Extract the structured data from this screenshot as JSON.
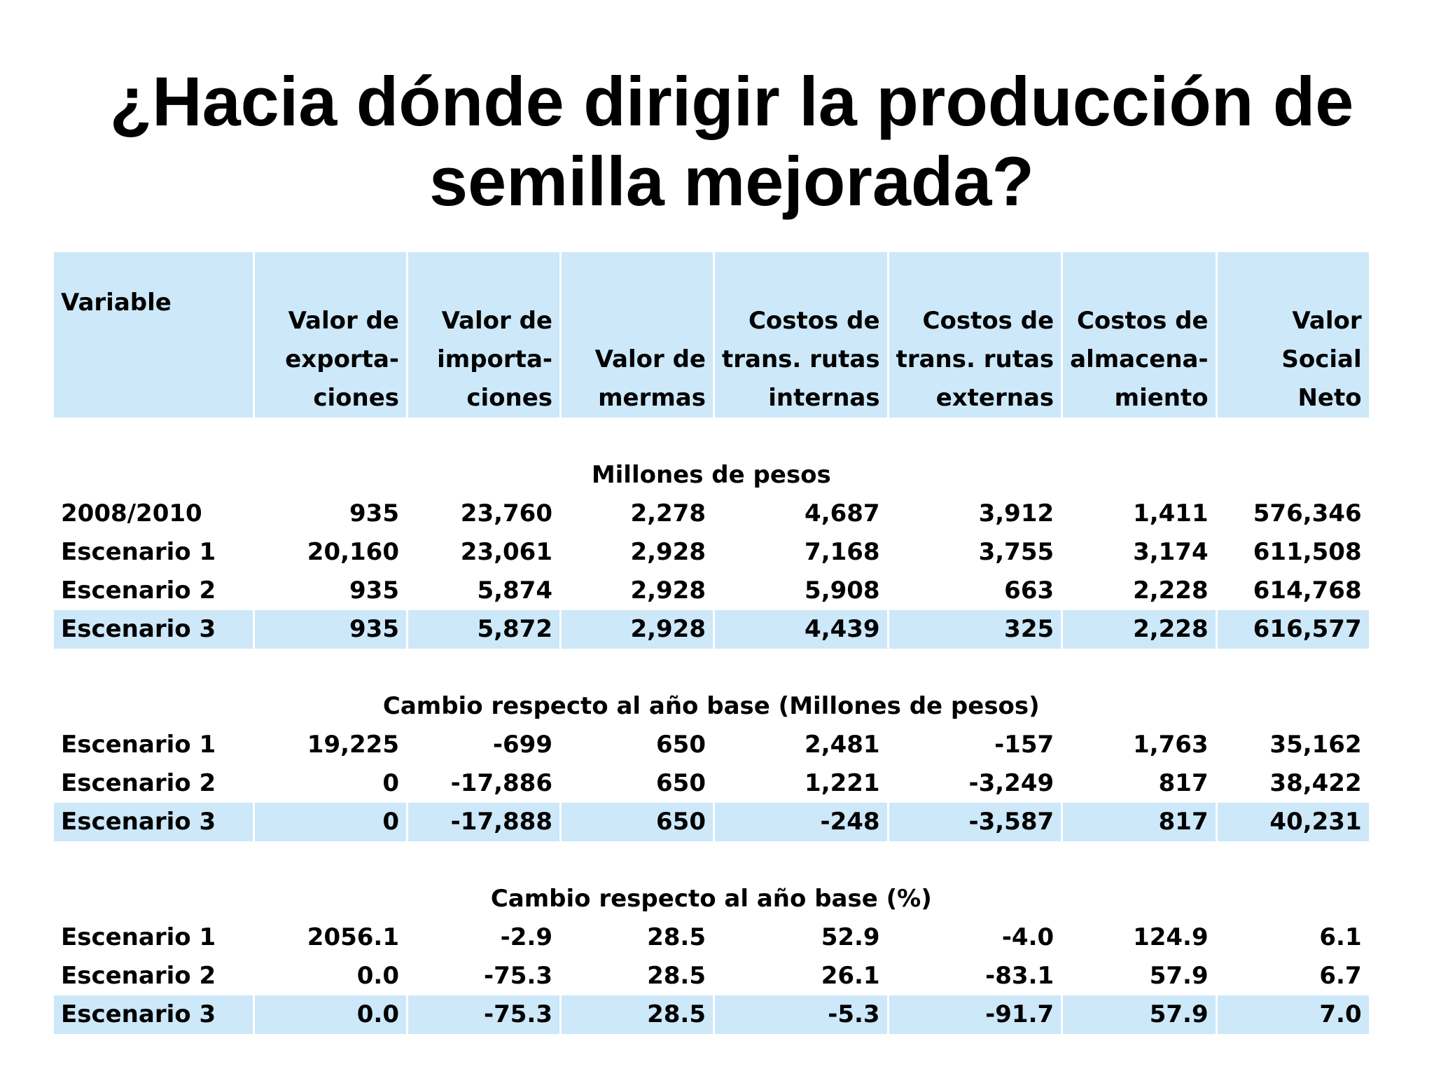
{
  "title": "¿Hacia dónde dirigir la producción de semilla mejorada?",
  "table": {
    "headers": [
      {
        "lines": [
          "Variable"
        ]
      },
      {
        "lines": [
          "Valor de",
          "exporta-",
          "ciones"
        ]
      },
      {
        "lines": [
          "Valor de",
          "importa-",
          "ciones"
        ]
      },
      {
        "lines": [
          "Valor de",
          "mermas"
        ]
      },
      {
        "lines": [
          "Costos de",
          "trans. rutas",
          "internas"
        ]
      },
      {
        "lines": [
          "Costos de",
          "trans. rutas",
          "externas"
        ]
      },
      {
        "lines": [
          "Costos de",
          "almacena-",
          "miento"
        ]
      },
      {
        "lines": [
          "Valor",
          "Social",
          "Neto"
        ]
      }
    ],
    "sections": [
      {
        "title": "Millones de pesos",
        "rows": [
          {
            "label": "2008/2010",
            "values": [
              "935",
              "23,760",
              "2,278",
              "4,687",
              "3,912",
              "1,411",
              "576,346"
            ]
          },
          {
            "label": "Escenario 1",
            "values": [
              "20,160",
              "23,061",
              "2,928",
              "7,168",
              "3,755",
              "3,174",
              "611,508"
            ]
          },
          {
            "label": "Escenario 2",
            "values": [
              "935",
              "5,874",
              "2,928",
              "5,908",
              "663",
              "2,228",
              "614,768"
            ]
          },
          {
            "label": "Escenario 3",
            "values": [
              "935",
              "5,872",
              "2,928",
              "4,439",
              "325",
              "2,228",
              "616,577"
            ],
            "highlight": true
          }
        ]
      },
      {
        "title": "Cambio respecto al año base (Millones de pesos)",
        "rows": [
          {
            "label": "Escenario 1",
            "values": [
              "19,225",
              "-699",
              "650",
              "2,481",
              "-157",
              "1,763",
              "35,162"
            ]
          },
          {
            "label": "Escenario 2",
            "values": [
              "0",
              "-17,886",
              "650",
              "1,221",
              "-3,249",
              "817",
              "38,422"
            ]
          },
          {
            "label": "Escenario 3",
            "values": [
              "0",
              "-17,888",
              "650",
              "-248",
              "-3,587",
              "817",
              "40,231"
            ],
            "highlight": true
          }
        ]
      },
      {
        "title": "Cambio respecto al año base (%)",
        "rows": [
          {
            "label": "Escenario 1",
            "values": [
              "2056.1",
              "-2.9",
              "28.5",
              "52.9",
              "-4.0",
              "124.9",
              "6.1"
            ]
          },
          {
            "label": "Escenario 2",
            "values": [
              "0.0",
              "-75.3",
              "28.5",
              "26.1",
              "-83.1",
              "57.9",
              "6.7"
            ]
          },
          {
            "label": "Escenario 3",
            "values": [
              "0.0",
              "-75.3",
              "28.5",
              "-5.3",
              "-91.7",
              "57.9",
              "7.0"
            ],
            "highlight": true
          }
        ]
      }
    ]
  },
  "colors": {
    "highlight": "#cce8f9",
    "text": "#000000",
    "background": "#ffffff"
  }
}
